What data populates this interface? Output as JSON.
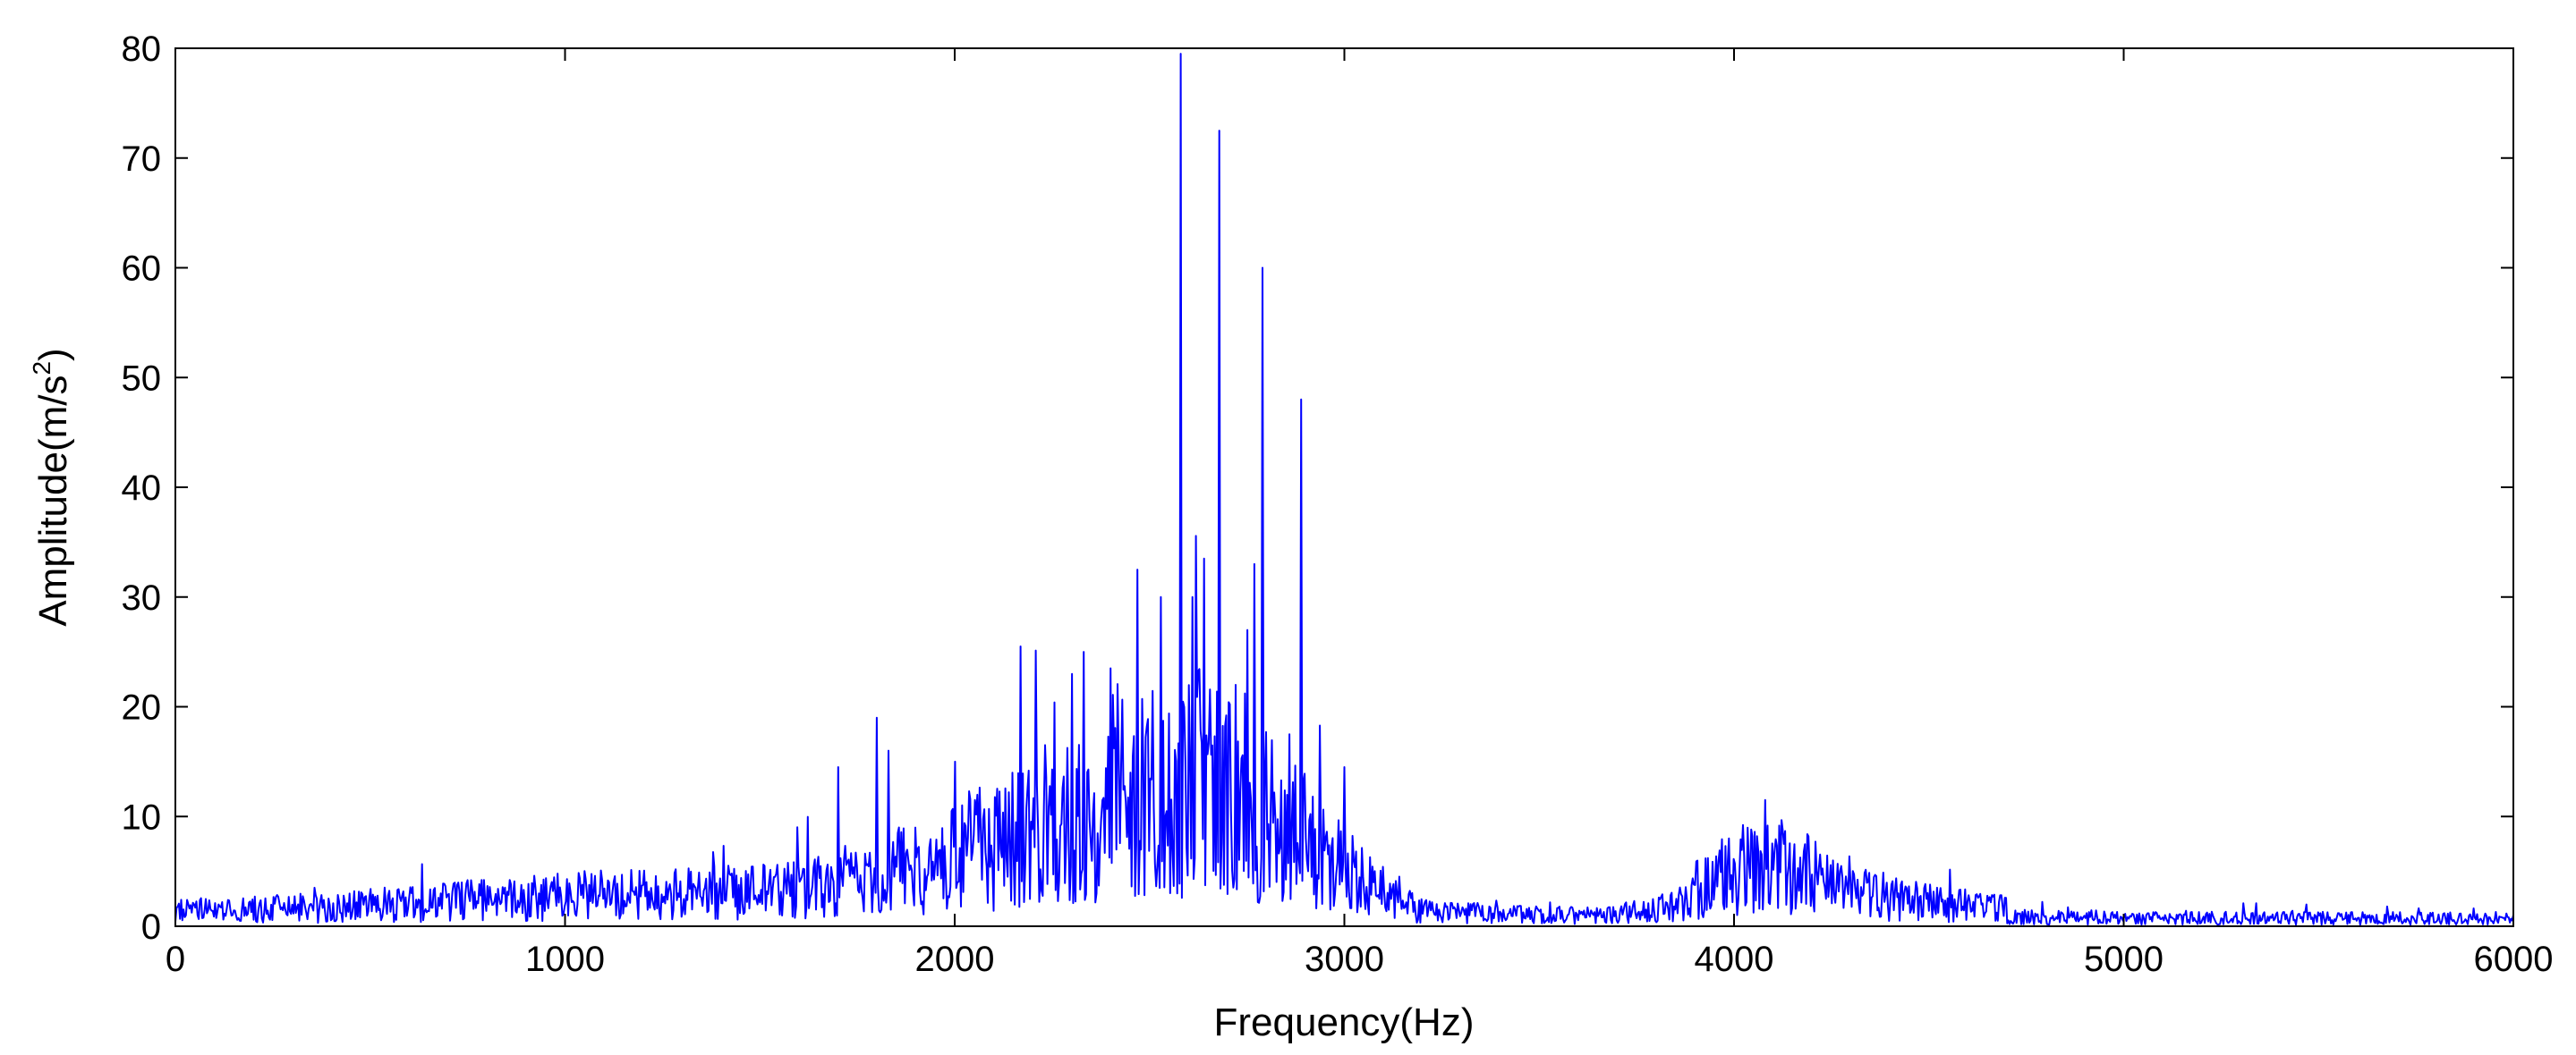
{
  "chart_data": {
    "type": "line",
    "title": "",
    "xlabel": "Frequency(Hz)",
    "ylabel_main": "Amplitude(m/s",
    "ylabel_sup": "2",
    "ylabel_close": ")",
    "xlim": [
      0,
      6000
    ],
    "ylim": [
      0,
      80
    ],
    "x_ticks": [
      0,
      1000,
      2000,
      3000,
      4000,
      5000,
      6000
    ],
    "y_ticks": [
      0,
      10,
      20,
      30,
      40,
      50,
      60,
      70,
      80
    ],
    "grid": false,
    "legend": "none",
    "series": [
      {
        "color": "#0000ff",
        "peaks": [
          {
            "x": 1700,
            "y": 14.5
          },
          {
            "x": 1800,
            "y": 19
          },
          {
            "x": 1830,
            "y": 16
          },
          {
            "x": 2000,
            "y": 15
          },
          {
            "x": 2170,
            "y": 25.5
          },
          {
            "x": 2300,
            "y": 23
          },
          {
            "x": 2330,
            "y": 25
          },
          {
            "x": 2400,
            "y": 23.5
          },
          {
            "x": 2470,
            "y": 32.5
          },
          {
            "x": 2530,
            "y": 30
          },
          {
            "x": 2580,
            "y": 79.5
          },
          {
            "x": 2610,
            "y": 30
          },
          {
            "x": 2640,
            "y": 33.5
          },
          {
            "x": 2680,
            "y": 72.5
          },
          {
            "x": 2720,
            "y": 22
          },
          {
            "x": 2750,
            "y": 27
          },
          {
            "x": 2770,
            "y": 33
          },
          {
            "x": 2790,
            "y": 60
          },
          {
            "x": 2860,
            "y": 17.5
          },
          {
            "x": 2890,
            "y": 48
          },
          {
            "x": 3000,
            "y": 14.5
          },
          {
            "x": 4080,
            "y": 11.5
          }
        ]
      }
    ]
  }
}
